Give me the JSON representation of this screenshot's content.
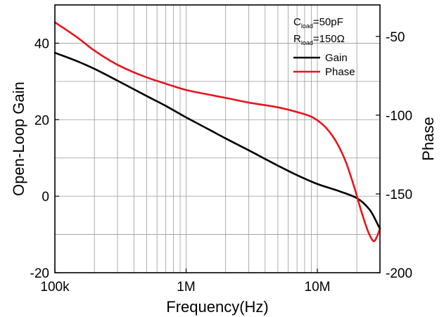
{
  "chart_data": {
    "type": "line",
    "xlabel": "Frequency(Hz)",
    "ylabel_left": "Open-Loop Gain",
    "ylabel_right": "Phase",
    "x_scale": "log",
    "xlim": [
      100000,
      30000000
    ],
    "ylim_left": [
      -20,
      50
    ],
    "ylim_right": [
      -200,
      -30
    ],
    "grid": true,
    "x_ticks": [
      {
        "value": 100000,
        "label": "100k"
      },
      {
        "value": 1000000,
        "label": "1M"
      },
      {
        "value": 10000000,
        "label": "10M"
      }
    ],
    "y_ticks_left": [
      {
        "value": -20,
        "label": "-20"
      },
      {
        "value": 0,
        "label": "0"
      },
      {
        "value": 20,
        "label": "20"
      },
      {
        "value": 40,
        "label": "40"
      }
    ],
    "y_ticks_right": [
      {
        "value": -200,
        "label": "-200"
      },
      {
        "value": -150,
        "label": "-150"
      },
      {
        "value": -100,
        "label": "-100"
      },
      {
        "value": -50,
        "label": "-50"
      }
    ],
    "legend": {
      "position": "top-right",
      "conditions": [
        {
          "main": "C",
          "sub": "load",
          "rest": "=50pF"
        },
        {
          "main": "R",
          "sub": "load",
          "rest": "=150Ω"
        }
      ]
    },
    "series": [
      {
        "name": "Gain",
        "axis": "left",
        "color": "#000000",
        "x": [
          100000,
          150000,
          200000,
          300000,
          500000,
          700000,
          1000000,
          1500000,
          2000000,
          3000000,
          5000000,
          7000000,
          10000000,
          15000000,
          20000000,
          25000000,
          30000000
        ],
        "y": [
          37.5,
          35.2,
          33.3,
          30.2,
          26.2,
          23.6,
          20.6,
          17.4,
          15.1,
          12.0,
          8.0,
          5.5,
          3.2,
          1.2,
          -0.5,
          -3.5,
          -8.5
        ]
      },
      {
        "name": "Phase",
        "axis": "right",
        "color": "#e8141e",
        "x": [
          100000,
          150000,
          200000,
          300000,
          500000,
          700000,
          1000000,
          1500000,
          2000000,
          3000000,
          5000000,
          7000000,
          9000000,
          11000000,
          13000000,
          16000000,
          19000000,
          22000000,
          25000000,
          27000000,
          28500000,
          30000000
        ],
        "y": [
          -41,
          -51,
          -59,
          -68,
          -76,
          -80,
          -84,
          -87,
          -89,
          -92,
          -95,
          -98,
          -101,
          -106,
          -113,
          -127,
          -145,
          -163,
          -176,
          -180,
          -177,
          -172
        ]
      }
    ]
  }
}
